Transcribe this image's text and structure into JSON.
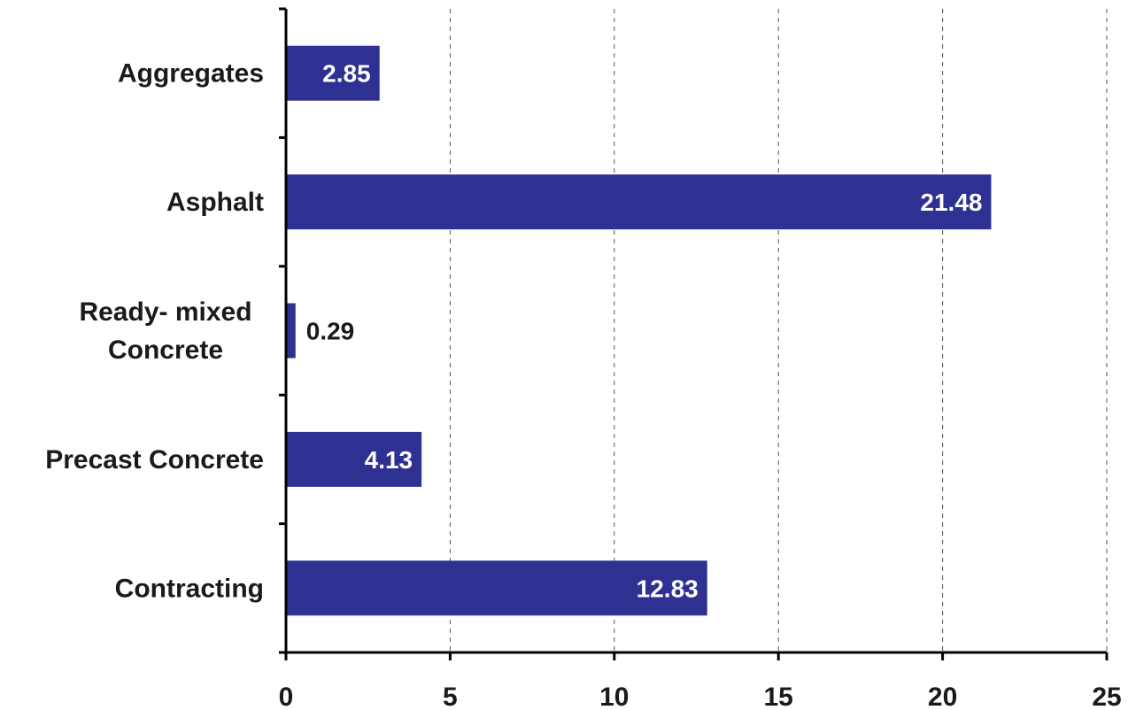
{
  "chart_data": {
    "type": "bar",
    "orientation": "horizontal",
    "categories": [
      "Aggregates",
      "Asphalt",
      "Ready- mixed Concrete",
      "Precast Concrete",
      "Contracting"
    ],
    "category_lines": [
      [
        "Aggregates"
      ],
      [
        "Asphalt"
      ],
      [
        "Ready- mixed",
        "Concrete"
      ],
      [
        "Precast Concrete"
      ],
      [
        "Contracting"
      ]
    ],
    "values": [
      2.85,
      21.48,
      0.29,
      4.13,
      12.83
    ],
    "data_labels": [
      "2.85",
      "21.48",
      "0.29",
      "4.13",
      "12.83"
    ],
    "xlim": [
      0,
      25
    ],
    "x_ticks": [
      0,
      5,
      10,
      15,
      20,
      25
    ],
    "x_tick_labels": [
      "0",
      "5",
      "10",
      "15",
      "20",
      "25"
    ],
    "grid": "vertical dashed",
    "legend": "none",
    "bar_color": "#2e3192",
    "label_inside_color": "#ffffff",
    "label_outside_color": "#1a1a1a"
  }
}
